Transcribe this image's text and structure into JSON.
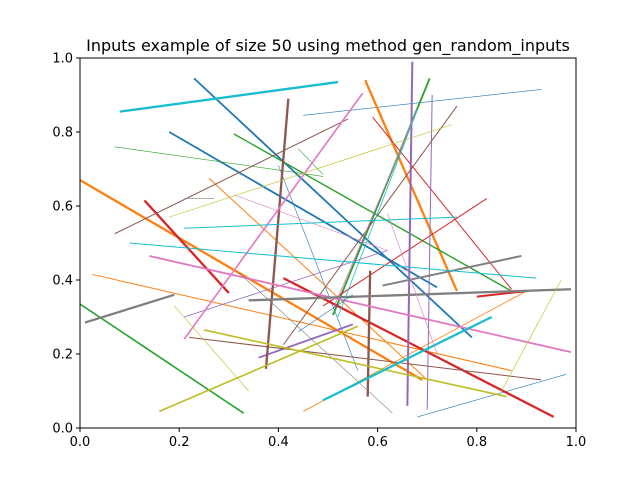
{
  "chart_data": {
    "type": "line",
    "title": "Inputs example of size 50 using method gen_random_inputs",
    "xlabel": "",
    "ylabel": "",
    "xlim": [
      0.0,
      1.0
    ],
    "ylim": [
      0.0,
      1.0
    ],
    "xticks": [
      "0.0",
      "0.2",
      "0.4",
      "0.6",
      "0.8",
      "1.0"
    ],
    "yticks": [
      "0.0",
      "0.2",
      "0.4",
      "0.6",
      "0.8",
      "1.0"
    ],
    "grid": false,
    "legend": "none",
    "colors": [
      "#1f77b4",
      "#ff7f0e",
      "#2ca02c",
      "#d62728",
      "#9467bd",
      "#8c564b",
      "#e377c2",
      "#7f7f7f",
      "#bcbd22",
      "#17becf"
    ],
    "segments": [
      {
        "x": [
          0.23,
          0.79
        ],
        "y": [
          0.945,
          0.245
        ],
        "color": "#1f77b4",
        "w": 1.8
      },
      {
        "x": [
          0.18,
          0.72
        ],
        "y": [
          0.8,
          0.38
        ],
        "color": "#1f77b4",
        "w": 1.8
      },
      {
        "x": [
          0.45,
          0.93
        ],
        "y": [
          0.845,
          0.915
        ],
        "color": "#1f77b4",
        "w": 0.6
      },
      {
        "x": [
          0.68,
          0.98
        ],
        "y": [
          0.03,
          0.145
        ],
        "color": "#1f77b4",
        "w": 0.6
      },
      {
        "x": [
          0.4,
          0.56
        ],
        "y": [
          0.71,
          0.155
        ],
        "color": "#1f77b4",
        "w": 0.6
      },
      {
        "x": [
          0.0,
          0.69
        ],
        "y": [
          0.67,
          0.13
        ],
        "color": "#ff7f0e",
        "w": 2.3
      },
      {
        "x": [
          0.575,
          0.76
        ],
        "y": [
          0.94,
          0.37
        ],
        "color": "#ff7f0e",
        "w": 2.3
      },
      {
        "x": [
          0.025,
          0.87
        ],
        "y": [
          0.415,
          0.155
        ],
        "color": "#ff7f0e",
        "w": 1.0
      },
      {
        "x": [
          0.26,
          0.7
        ],
        "y": [
          0.675,
          0.13
        ],
        "color": "#ff7f0e",
        "w": 1.0
      },
      {
        "x": [
          0.45,
          0.9
        ],
        "y": [
          0.045,
          0.37
        ],
        "color": "#ff7f0e",
        "w": 0.8
      },
      {
        "x": [
          0.0,
          0.33
        ],
        "y": [
          0.335,
          0.04
        ],
        "color": "#2ca02c",
        "w": 1.6
      },
      {
        "x": [
          0.51,
          0.705
        ],
        "y": [
          0.305,
          0.945
        ],
        "color": "#2ca02c",
        "w": 1.8
      },
      {
        "x": [
          0.31,
          0.87
        ],
        "y": [
          0.795,
          0.37
        ],
        "color": "#2ca02c",
        "w": 1.4
      },
      {
        "x": [
          0.07,
          0.49
        ],
        "y": [
          0.76,
          0.68
        ],
        "color": "#2ca02c",
        "w": 0.6
      },
      {
        "x": [
          0.44,
          0.49
        ],
        "y": [
          0.755,
          0.685
        ],
        "color": "#2ca02c",
        "w": 0.6
      },
      {
        "x": [
          0.13,
          0.3
        ],
        "y": [
          0.615,
          0.365
        ],
        "color": "#d62728",
        "w": 2.3
      },
      {
        "x": [
          0.41,
          0.955
        ],
        "y": [
          0.405,
          0.03
        ],
        "color": "#d62728",
        "w": 2.3
      },
      {
        "x": [
          0.8,
          0.9
        ],
        "y": [
          0.355,
          0.37
        ],
        "color": "#d62728",
        "w": 2.0
      },
      {
        "x": [
          0.59,
          0.87
        ],
        "y": [
          0.84,
          0.375
        ],
        "color": "#d62728",
        "w": 1.0
      },
      {
        "x": [
          0.49,
          0.82
        ],
        "y": [
          0.33,
          0.62
        ],
        "color": "#d62728",
        "w": 1.0
      },
      {
        "x": [
          0.66,
          0.67
        ],
        "y": [
          0.06,
          0.99
        ],
        "color": "#9467bd",
        "w": 2.0
      },
      {
        "x": [
          0.36,
          0.55
        ],
        "y": [
          0.19,
          0.28
        ],
        "color": "#9467bd",
        "w": 1.8
      },
      {
        "x": [
          0.7,
          0.71
        ],
        "y": [
          0.05,
          0.9
        ],
        "color": "#9467bd",
        "w": 1.0
      },
      {
        "x": [
          0.21,
          0.62
        ],
        "y": [
          0.3,
          0.48
        ],
        "color": "#9467bd",
        "w": 0.8
      },
      {
        "x": [
          0.375,
          0.42
        ],
        "y": [
          0.16,
          0.89
        ],
        "color": "#8c564b",
        "w": 2.3
      },
      {
        "x": [
          0.58,
          0.585
        ],
        "y": [
          0.085,
          0.425
        ],
        "color": "#8c564b",
        "w": 2.3
      },
      {
        "x": [
          0.07,
          0.54
        ],
        "y": [
          0.525,
          0.835
        ],
        "color": "#8c564b",
        "w": 1.0
      },
      {
        "x": [
          0.22,
          0.93
        ],
        "y": [
          0.245,
          0.13
        ],
        "color": "#8c564b",
        "w": 1.0
      },
      {
        "x": [
          0.41,
          0.76
        ],
        "y": [
          0.225,
          0.87
        ],
        "color": "#8c564b",
        "w": 1.0
      },
      {
        "x": [
          0.21,
          0.57
        ],
        "y": [
          0.24,
          0.905
        ],
        "color": "#e377c2",
        "w": 1.6
      },
      {
        "x": [
          0.14,
          0.99
        ],
        "y": [
          0.465,
          0.205
        ],
        "color": "#e377c2",
        "w": 1.8
      },
      {
        "x": [
          0.51,
          0.68
        ],
        "y": [
          0.32,
          0.86
        ],
        "color": "#e377c2",
        "w": 0.8
      },
      {
        "x": [
          0.31,
          0.62
        ],
        "y": [
          0.63,
          0.48
        ],
        "color": "#e377c2",
        "w": 0.6
      },
      {
        "x": [
          0.01,
          0.19
        ],
        "y": [
          0.285,
          0.36
        ],
        "color": "#7f7f7f",
        "w": 2.3
      },
      {
        "x": [
          0.34,
          0.99
        ],
        "y": [
          0.345,
          0.375
        ],
        "color": "#7f7f7f",
        "w": 2.3
      },
      {
        "x": [
          0.61,
          0.89
        ],
        "y": [
          0.385,
          0.465
        ],
        "color": "#7f7f7f",
        "w": 2.0
      },
      {
        "x": [
          0.32,
          0.63
        ],
        "y": [
          0.42,
          0.04
        ],
        "color": "#7f7f7f",
        "w": 0.6
      },
      {
        "x": [
          0.21,
          0.27
        ],
        "y": [
          0.62,
          0.62
        ],
        "color": "#7f7f7f",
        "w": 0.6
      },
      {
        "x": [
          0.16,
          0.56
        ],
        "y": [
          0.045,
          0.275
        ],
        "color": "#bcbd22",
        "w": 1.6
      },
      {
        "x": [
          0.25,
          0.86
        ],
        "y": [
          0.265,
          0.085
        ],
        "color": "#bcbd22",
        "w": 1.6
      },
      {
        "x": [
          0.18,
          0.75
        ],
        "y": [
          0.57,
          0.82
        ],
        "color": "#bcbd22",
        "w": 0.6
      },
      {
        "x": [
          0.19,
          0.34
        ],
        "y": [
          0.33,
          0.1
        ],
        "color": "#bcbd22",
        "w": 0.6
      },
      {
        "x": [
          0.85,
          0.97
        ],
        "y": [
          0.1,
          0.4
        ],
        "color": "#bcbd22",
        "w": 0.6
      },
      {
        "x": [
          0.08,
          0.52
        ],
        "y": [
          0.855,
          0.935
        ],
        "color": "#17becf",
        "w": 2.3
      },
      {
        "x": [
          0.49,
          0.83
        ],
        "y": [
          0.075,
          0.3
        ],
        "color": "#17becf",
        "w": 2.3
      },
      {
        "x": [
          0.1,
          0.92
        ],
        "y": [
          0.5,
          0.405
        ],
        "color": "#17becf",
        "w": 1.0
      },
      {
        "x": [
          0.21,
          0.76
        ],
        "y": [
          0.54,
          0.57
        ],
        "color": "#17becf",
        "w": 1.0
      },
      {
        "x": [
          0.52,
          0.68
        ],
        "y": [
          0.3,
          0.86
        ],
        "color": "#17becf",
        "w": 0.8
      },
      {
        "x": [
          0.44,
          0.55
        ],
        "y": [
          0.26,
          0.36
        ],
        "color": "#1f77b4",
        "w": 0.6
      },
      {
        "x": [
          0.62,
          0.72
        ],
        "y": [
          0.58,
          0.2
        ],
        "color": "#e377c2",
        "w": 0.6
      }
    ]
  }
}
